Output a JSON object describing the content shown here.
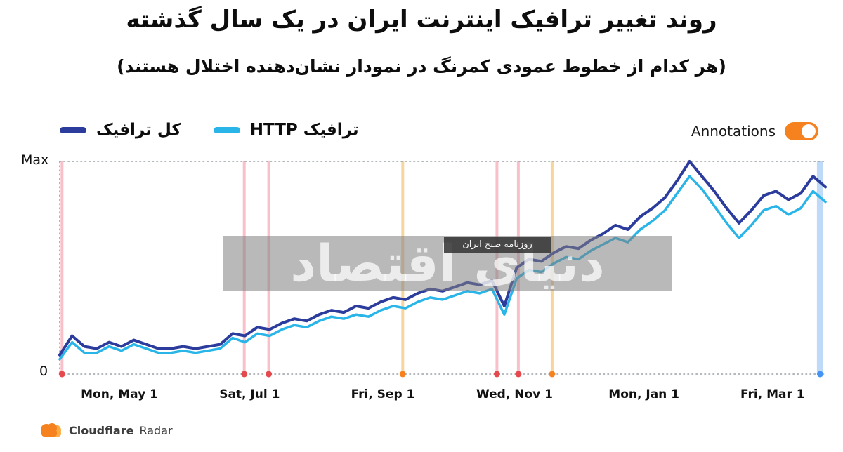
{
  "header": {
    "title": "روند تغییر ترافیک اینترنت ایران در یک سال گذشته",
    "subtitle": "(هر کدام از خطوط عمودی کمرنگ در نمودار نشان‌دهنده اختلال هستند)"
  },
  "legend": {
    "items": [
      {
        "id": "total",
        "label": "کل ترافیک",
        "color": "#2b3c9c"
      },
      {
        "id": "http",
        "label": "ترافیک HTTP",
        "color": "#29b5e8"
      }
    ]
  },
  "annotations_control": {
    "label": "Annotations",
    "state": "on",
    "color": "#f6821f"
  },
  "watermark": {
    "text": "دنیای اقتصاد",
    "caption": "روزنامه صبح ایران"
  },
  "footer": {
    "brand": "Cloudflare",
    "product": "Radar",
    "brand_orange": "#f6821f",
    "brand_orange_light": "#fbad41"
  },
  "chart_data": {
    "type": "line",
    "y_axis": {
      "max_label": "Max",
      "min_label": "0",
      "scale_note": "values normalized 0-100 where 100 = Max line"
    },
    "x_ticks": [
      {
        "label": "Mon, May 1",
        "pos": 0.078
      },
      {
        "label": "Sat, Jul 1",
        "pos": 0.248
      },
      {
        "label": "Fri, Sep 1",
        "pos": 0.422
      },
      {
        "label": "Wed, Nov 1",
        "pos": 0.594
      },
      {
        "label": "Mon, Jan 1",
        "pos": 0.763
      },
      {
        "label": "Fri, Mar 1",
        "pos": 0.931
      }
    ],
    "series": [
      {
        "id": "total",
        "name": "کل ترافیک",
        "color": "#2b3c9c",
        "stroke_width": 4,
        "values": [
          9,
          18,
          13,
          12,
          15,
          13,
          16,
          14,
          12,
          12,
          13,
          12,
          13,
          14,
          19,
          18,
          22,
          21,
          24,
          26,
          25,
          28,
          30,
          29,
          32,
          31,
          34,
          36,
          35,
          38,
          40,
          39,
          41,
          43,
          42,
          44,
          32,
          50,
          54,
          53,
          57,
          60,
          59,
          63,
          66,
          70,
          68,
          74,
          78,
          83,
          91,
          100,
          93,
          86,
          78,
          71,
          77,
          84,
          86,
          82,
          85,
          93,
          88
        ]
      },
      {
        "id": "http",
        "name": "ترافیک HTTP",
        "color": "#29b5e8",
        "stroke_width": 3.5,
        "values": [
          7,
          15,
          10,
          10,
          13,
          11,
          14,
          12,
          10,
          10,
          11,
          10,
          11,
          12,
          17,
          15,
          19,
          18,
          21,
          23,
          22,
          25,
          27,
          26,
          28,
          27,
          30,
          32,
          31,
          34,
          36,
          35,
          37,
          39,
          38,
          40,
          28,
          45,
          49,
          48,
          52,
          55,
          54,
          58,
          61,
          64,
          62,
          68,
          72,
          77,
          85,
          93,
          87,
          79,
          71,
          64,
          70,
          77,
          79,
          75,
          78,
          86,
          81
        ]
      }
    ],
    "annotations": [
      {
        "pos": 0.003,
        "color": "#f9c0ca",
        "dot": "#e5484d",
        "width": 4
      },
      {
        "pos": 0.241,
        "color": "#f9c0ca",
        "dot": "#e5484d",
        "width": 4
      },
      {
        "pos": 0.273,
        "color": "#f9c0ca",
        "dot": "#e5484d",
        "width": 4
      },
      {
        "pos": 0.448,
        "color": "#f8d59c",
        "dot": "#f6821f",
        "width": 4
      },
      {
        "pos": 0.571,
        "color": "#f9c0ca",
        "dot": "#e5484d",
        "width": 4
      },
      {
        "pos": 0.599,
        "color": "#f9c0ca",
        "dot": "#e5484d",
        "width": 4
      },
      {
        "pos": 0.643,
        "color": "#f8d59c",
        "dot": "#f6821f",
        "width": 4
      },
      {
        "pos": 0.993,
        "color": "#bedaf8",
        "dot": "#4693f6",
        "width": 9
      }
    ]
  }
}
